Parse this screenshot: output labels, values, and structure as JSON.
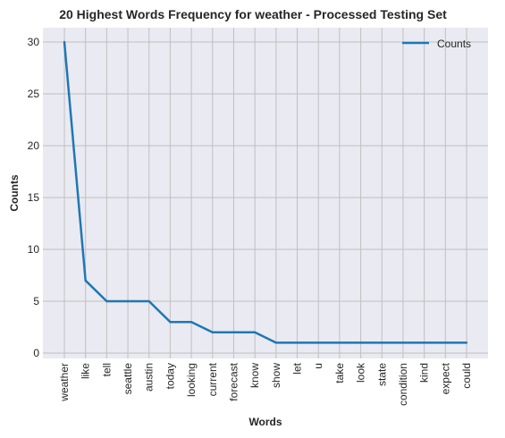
{
  "chart_data": {
    "type": "line",
    "title": "20 Highest Words Frequency for weather - Processed Testing Set",
    "xlabel": "Words",
    "ylabel": "Counts",
    "categories": [
      "weather",
      "like",
      "tell",
      "seattle",
      "austin",
      "today",
      "looking",
      "current",
      "forecast",
      "know",
      "show",
      "let",
      "u",
      "take",
      "look",
      "state",
      "condition",
      "kind",
      "expect",
      "could"
    ],
    "series": [
      {
        "name": "Counts",
        "values": [
          30,
          7,
          5,
          5,
          5,
          3,
          3,
          2,
          2,
          2,
          1,
          1,
          1,
          1,
          1,
          1,
          1,
          1,
          1,
          1
        ]
      }
    ],
    "ylim": [
      0,
      30
    ],
    "yticks": [
      0,
      5,
      10,
      15,
      20,
      25,
      30
    ],
    "grid": true,
    "legend_position": "top-right",
    "colors": {
      "line": "#1f77b4",
      "plot_bg": "#eaeaf2",
      "grid": "#c0c0c0"
    }
  }
}
